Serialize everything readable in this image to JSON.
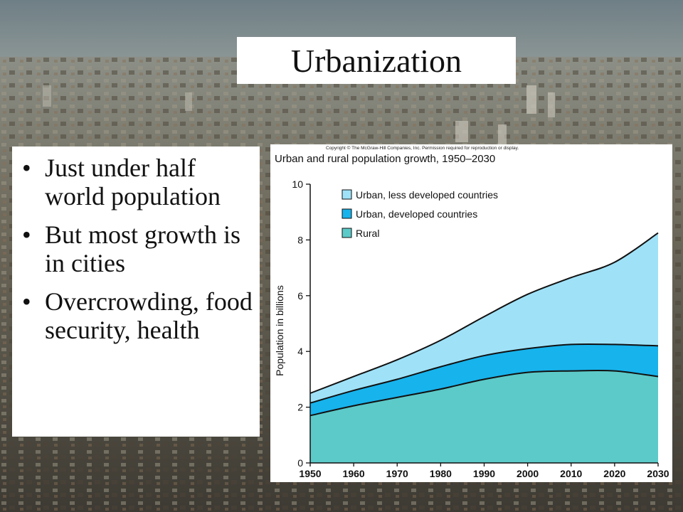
{
  "slide": {
    "title": "Urbanization",
    "bullets": [
      "Just under half world population",
      "But most growth is in cities",
      "Overcrowding, food security, health"
    ]
  },
  "chart_data": {
    "type": "area",
    "copyright": "Copyright © The McGraw-Hill Companies, Inc. Permission required for reproduction or display.",
    "title": "Urban and rural population growth, 1950–2030",
    "ylabel": "Population in billions",
    "xlabel": "",
    "x": [
      1950,
      1960,
      1970,
      1980,
      1990,
      2000,
      2010,
      2020,
      2030
    ],
    "x_ticks": [
      "1950",
      "1960",
      "1970",
      "1980",
      "1990",
      "2000",
      "2010",
      "2020",
      "2030"
    ],
    "y_ticks": [
      "0",
      "2",
      "4",
      "6",
      "8",
      "10"
    ],
    "ylim": [
      0,
      10
    ],
    "stacked": true,
    "legend_position": "top-left",
    "series": [
      {
        "name": "Rural",
        "color": "#5ccac8",
        "values": [
          1.7,
          2.05,
          2.35,
          2.65,
          3.0,
          3.25,
          3.3,
          3.3,
          3.1
        ]
      },
      {
        "name": "Urban, developed countries",
        "color": "#17b3ec",
        "values": [
          0.45,
          0.55,
          0.65,
          0.8,
          0.85,
          0.85,
          0.95,
          0.95,
          1.1
        ]
      },
      {
        "name": "Urban, less developed countries",
        "color": "#9fe2f8",
        "values": [
          0.35,
          0.5,
          0.7,
          0.95,
          1.4,
          1.95,
          2.4,
          2.95,
          4.05
        ]
      }
    ],
    "legend": [
      {
        "name": "Urban, less developed countries",
        "color": "#9fe2f8"
      },
      {
        "name": "Urban, developed countries",
        "color": "#17b3ec"
      },
      {
        "name": "Rural",
        "color": "#5ccac8"
      }
    ]
  }
}
